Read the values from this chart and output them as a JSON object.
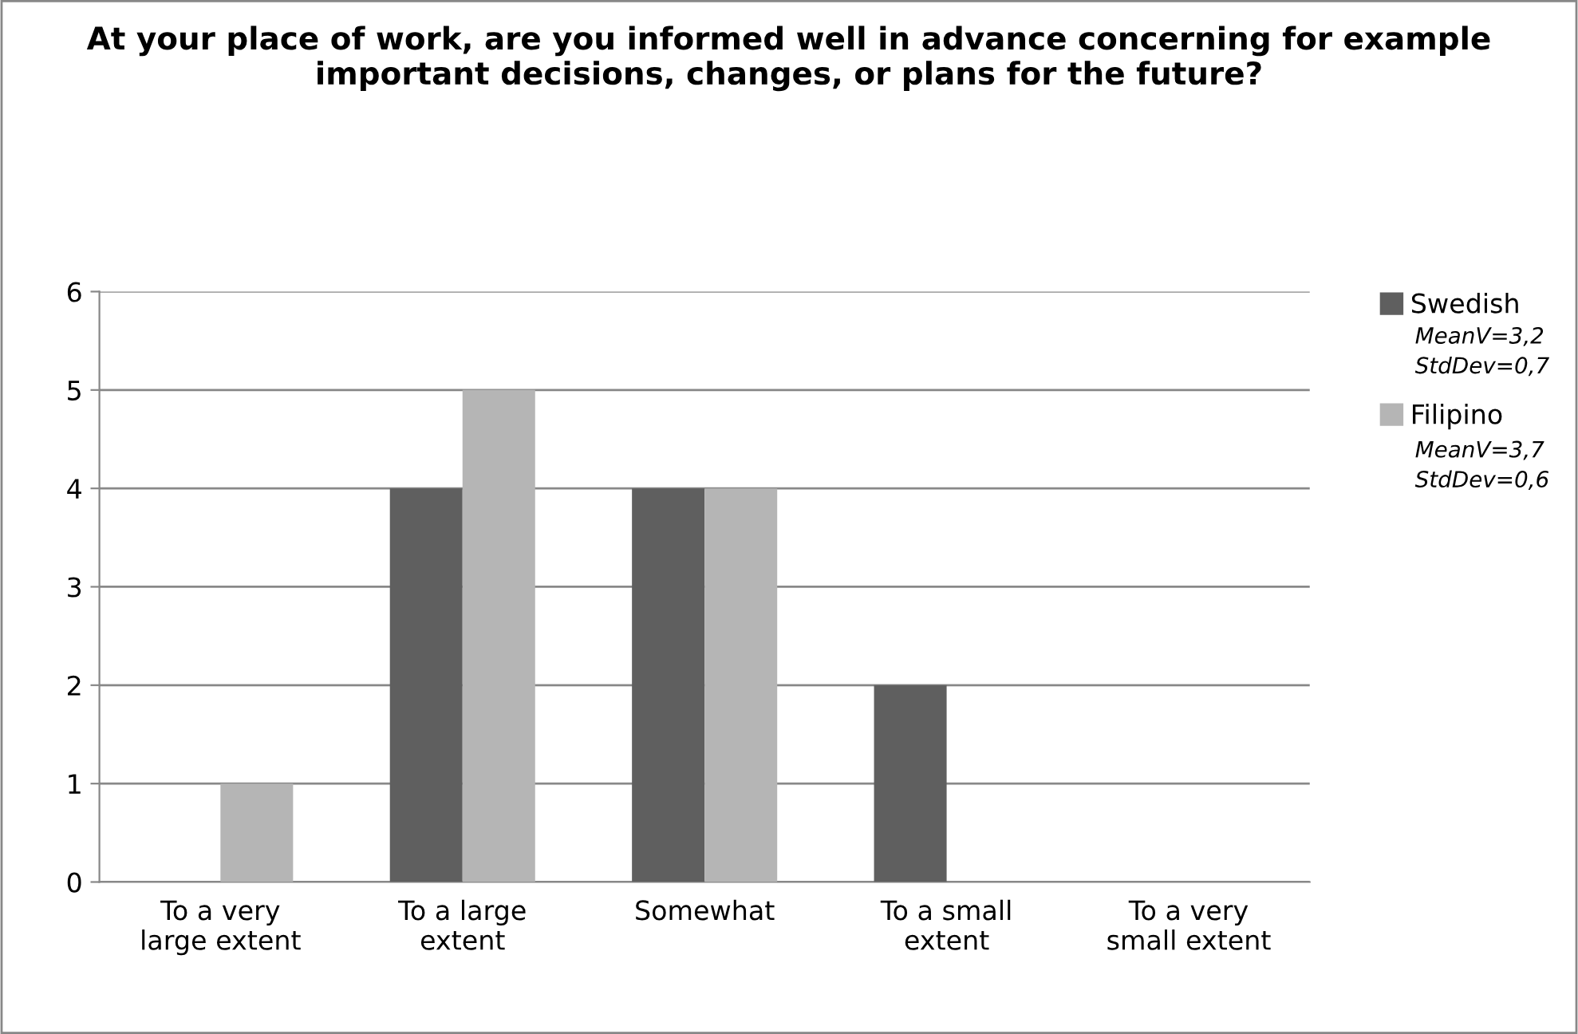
{
  "chart_data": {
    "type": "bar",
    "title": "At your place of work, are you informed well in advance concerning for example important decisions, changes, or plans for the future?",
    "categories": [
      "To a very\nlarge extent",
      "To a large\nextent",
      "Somewhat",
      "To a small\nextent",
      "To a very\nsmall extent"
    ],
    "series": [
      {
        "name": "Swedish",
        "color": "#5f5f5f",
        "values": [
          0,
          4,
          4,
          2,
          0
        ]
      },
      {
        "name": "Filipino",
        "color": "#b5b5b5",
        "values": [
          1,
          5,
          4,
          0,
          0
        ]
      }
    ],
    "ylim": [
      0,
      6
    ],
    "yticks": [
      0,
      1,
      2,
      3,
      4,
      5,
      6
    ],
    "grid": "y",
    "legend": "right",
    "annotations": [
      "MeanV=3,2\nStdDev=0,7",
      "MeanV=3,7\nStdDev=0,6"
    ]
  }
}
